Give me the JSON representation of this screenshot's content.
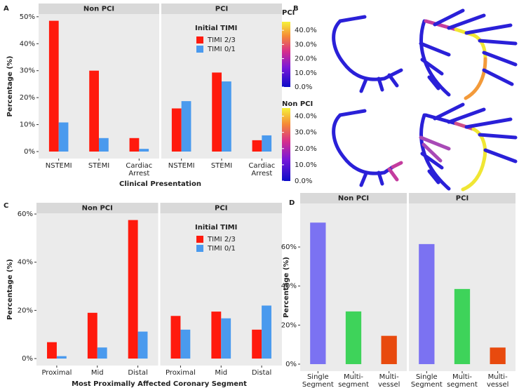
{
  "chart_data": [
    {
      "type": "bar",
      "label": "A",
      "ylabel": "Percentage (%)",
      "xlabel": "Clinical Presentation",
      "facets": [
        "Non PCI",
        "PCI"
      ],
      "categories": [
        "NSTEMI",
        "STEMI",
        "Cardiac\nArrest"
      ],
      "legend_title": "Initial TIMI",
      "legend": "top-right",
      "series": [
        {
          "name": "TIMI 2/3",
          "color": "#ff1a0d",
          "values": [
            [
              48.5,
              30,
              5
            ],
            [
              16,
              29.3,
              4.2
            ]
          ]
        },
        {
          "name": "TIMI 0/1",
          "color": "#4a9aee",
          "values": [
            [
              10.8,
              5,
              1
            ],
            [
              18.7,
              26,
              6
            ]
          ]
        }
      ],
      "ylim": [
        -2.6,
        51
      ],
      "yticks": [
        {
          "value": 0,
          "label": "0%"
        },
        {
          "value": 10,
          "label": "10%"
        },
        {
          "value": 20,
          "label": "20%"
        },
        {
          "value": 30,
          "label": "30%"
        },
        {
          "value": 40,
          "label": "40%"
        },
        {
          "value": 50,
          "label": "50%"
        }
      ]
    },
    {
      "type": "colorbar",
      "label": "B",
      "scales": [
        {
          "title": "PCI",
          "lim": [
            0,
            46
          ],
          "ticks": [
            {
              "value": 0,
              "label": "0.0%"
            },
            {
              "value": 10,
              "label": "10.0%"
            },
            {
              "value": 20,
              "label": "20.0%"
            },
            {
              "value": 30,
              "label": "30.0%"
            },
            {
              "value": 40,
              "label": "40.0%"
            }
          ]
        },
        {
          "title": "Non PCI",
          "lim": [
            0,
            45
          ],
          "ticks": [
            {
              "value": 0,
              "label": "0.0%"
            },
            {
              "value": 10,
              "label": "10.0%"
            },
            {
              "value": 20,
              "label": "20.0%"
            },
            {
              "value": 30,
              "label": "30.0%"
            },
            {
              "value": 40,
              "label": "40.0%"
            }
          ]
        }
      ]
    },
    {
      "type": "bar",
      "label": "C",
      "ylabel": "Percentage (%)",
      "xlabel": "Most Proximally Affected Coronary Segment",
      "facets": [
        "Non PCI",
        "PCI"
      ],
      "categories": [
        "Proximal",
        "Mid",
        "Distal"
      ],
      "legend_title": "Initial TIMI",
      "legend": "top-right",
      "series": [
        {
          "name": "TIMI 2/3",
          "color": "#ff1a0d",
          "values": [
            [
              6.8,
              19,
              57.5
            ],
            [
              17.7,
              19.5,
              12
            ]
          ]
        },
        {
          "name": "TIMI 0/1",
          "color": "#4a9aee",
          "values": [
            [
              1,
              4.6,
              11.2
            ],
            [
              12,
              16.7,
              22
            ]
          ]
        }
      ],
      "ylim": [
        -2.9,
        60.3
      ],
      "yticks": [
        {
          "value": 0,
          "label": "0%"
        },
        {
          "value": 20,
          "label": "20%"
        },
        {
          "value": 40,
          "label": "40%"
        },
        {
          "value": 60,
          "label": "60%"
        }
      ]
    },
    {
      "type": "bar",
      "label": "D",
      "ylabel": "Percentage (%)",
      "facets": [
        "Non PCI",
        "PCI"
      ],
      "categories": [
        "Single\nSegment",
        "Multi-\nsegment",
        "Multi-\nvessel"
      ],
      "colors": [
        "#7b72f2",
        "#3ed35a",
        "#e84a0e"
      ],
      "values": [
        [
          72.5,
          27,
          14.5
        ],
        [
          61.5,
          38.5,
          8.5
        ]
      ],
      "ylim": [
        -3.6,
        82.3
      ],
      "yticks": [
        {
          "value": 0,
          "label": "0%"
        },
        {
          "value": 20,
          "label": "20%"
        },
        {
          "value": 40,
          "label": "40%"
        },
        {
          "value": 60,
          "label": "60%"
        }
      ]
    }
  ]
}
